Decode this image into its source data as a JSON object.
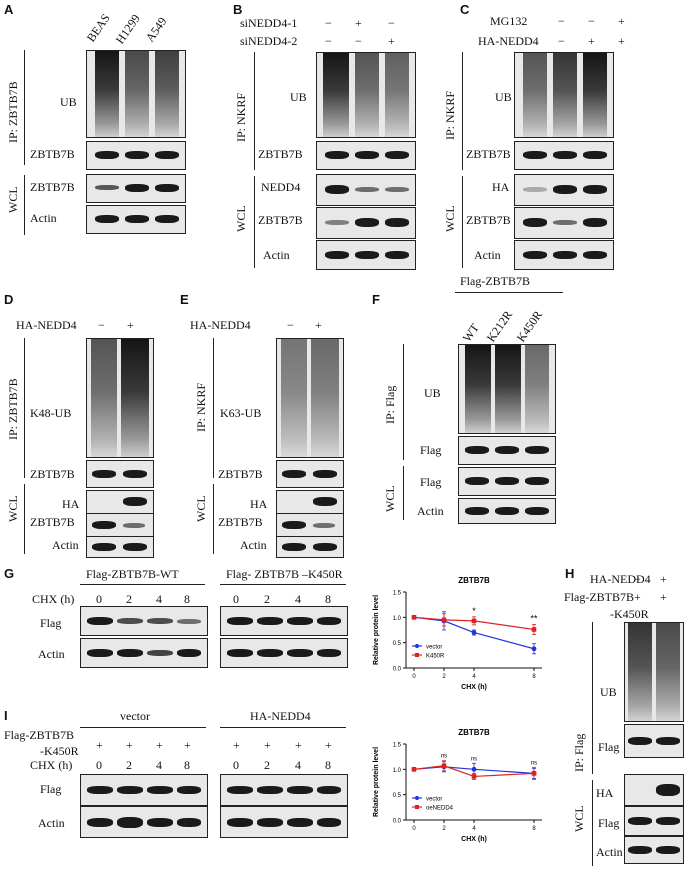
{
  "panels": {
    "A": {
      "label": "A",
      "lanes": [
        "BEAS",
        "H1299",
        "A549"
      ],
      "ip_label": "IP: ZBTB7B",
      "wcl_label": "WCL",
      "rows": [
        "UB",
        "ZBTB7B",
        "ZBTB7B",
        "Actin"
      ]
    },
    "B": {
      "label": "B",
      "conditions": [
        {
          "name": "siNEDD4-1",
          "signs": [
            "−",
            "+",
            "−"
          ]
        },
        {
          "name": "siNEDD4-2",
          "signs": [
            "−",
            "−",
            "+"
          ]
        }
      ],
      "ip_label": "IP: NKRF",
      "wcl_label": "WCL",
      "rows": [
        "UB",
        "ZBTB7B",
        "NEDD4",
        "ZBTB7B",
        "Actin"
      ]
    },
    "C": {
      "label": "C",
      "conditions": [
        {
          "name": "MG132",
          "signs": [
            "−",
            "−",
            "+"
          ]
        },
        {
          "name": "HA-NEDD4",
          "signs": [
            "−",
            "+",
            "+"
          ]
        }
      ],
      "ip_label": "IP: NKRF",
      "wcl_label": "WCL",
      "rows": [
        "UB",
        "ZBTB7B",
        "HA",
        "ZBTB7B",
        "Actin"
      ]
    },
    "D": {
      "label": "D",
      "conditions": [
        {
          "name": "HA-NEDD4",
          "signs": [
            "−",
            "+"
          ]
        }
      ],
      "ip_label": "IP: ZBTB7B",
      "wcl_label": "WCL",
      "rows": [
        "K48-UB",
        "ZBTB7B",
        "HA",
        "ZBTB7B",
        "Actin"
      ]
    },
    "E": {
      "label": "E",
      "conditions": [
        {
          "name": "HA-NEDD4",
          "signs": [
            "−",
            "+"
          ]
        }
      ],
      "ip_label": "IP: NKRF",
      "wcl_label": "WCL",
      "rows": [
        "K63-UB",
        "ZBTB7B",
        "HA",
        "ZBTB7B",
        "Actin"
      ]
    },
    "F": {
      "label": "F",
      "header": "Flag-ZBTB7B",
      "lanes": [
        "WT",
        "K212R",
        "K450R"
      ],
      "ip_label": "IP: Flag",
      "wcl_label": "WCL",
      "rows": [
        "UB",
        "Flag",
        "Flag",
        "Actin"
      ]
    },
    "G": {
      "label": "G",
      "blot_titles": [
        "Flag-ZBTB7B-WT",
        "Flag- ZBTB7B –K450R"
      ],
      "chx_label": "CHX (h)",
      "times": [
        "0",
        "2",
        "4",
        "8"
      ],
      "rows": [
        "Flag",
        "Actin"
      ]
    },
    "H": {
      "label": "H",
      "conditions": [
        {
          "name": "HA-NEDD4",
          "signs": [
            "−",
            "+"
          ]
        },
        {
          "name": "Flag-ZBTB7B",
          "signs": [
            "+",
            "+"
          ]
        }
      ],
      "subtitle": "-K450R",
      "ip_label": "IP: Flag",
      "wcl_label": "WCL",
      "rows": [
        "UB",
        "Flag",
        "HA",
        "Flag",
        "Actin"
      ]
    },
    "I": {
      "label": "I",
      "construct_line1": "Flag-ZBTB7B",
      "construct_line2": "-K450R",
      "blot_titles": [
        "vector",
        "HA-NEDD4"
      ],
      "plus": "+",
      "chx_label": "CHX (h)",
      "times": [
        "0",
        "2",
        "4",
        "8"
      ],
      "rows": [
        "Flag",
        "Actin"
      ]
    }
  },
  "chart_data": [
    {
      "type": "line",
      "title": "ZBTB7B",
      "xlabel": "CHX (h)",
      "ylabel": "Relative protein level",
      "x": [
        0,
        2,
        4,
        8
      ],
      "xticks": [
        "0",
        "2",
        "4",
        "8"
      ],
      "yticks": [
        "0.0",
        "0.5",
        "1.0",
        "1.5"
      ],
      "ylim": [
        0,
        1.5
      ],
      "series": [
        {
          "name": "vector",
          "color": "#2233dd",
          "marker": "circle",
          "values": [
            1.0,
            0.93,
            0.7,
            0.38
          ],
          "errors": [
            0.02,
            0.18,
            0.05,
            0.1
          ]
        },
        {
          "name": "K450R",
          "color": "#dd2222",
          "marker": "square",
          "values": [
            1.0,
            0.95,
            0.93,
            0.76
          ],
          "errors": [
            0.02,
            0.12,
            0.08,
            0.1
          ]
        }
      ],
      "annotations": [
        {
          "x": 4,
          "text": "*"
        },
        {
          "x": 8,
          "text": "**"
        }
      ],
      "legend": "bottom-left"
    },
    {
      "type": "line",
      "title": "ZBTB7B",
      "xlabel": "CHX (h)",
      "ylabel": "Relative protein level",
      "x": [
        0,
        2,
        4,
        8
      ],
      "xticks": [
        "0",
        "2",
        "4",
        "8"
      ],
      "yticks": [
        "0.0",
        "0.5",
        "1.0",
        "1.5"
      ],
      "ylim": [
        0,
        1.5
      ],
      "series": [
        {
          "name": "vector",
          "color": "#2233dd",
          "marker": "circle",
          "values": [
            1.0,
            1.05,
            1.0,
            0.92
          ],
          "errors": [
            0.02,
            0.1,
            0.12,
            0.1
          ]
        },
        {
          "name": "oeNEDD4",
          "color": "#dd2222",
          "marker": "square",
          "values": [
            1.0,
            1.07,
            0.86,
            0.92
          ],
          "errors": [
            0.02,
            0.1,
            0.06,
            0.12
          ]
        }
      ],
      "annotations": [
        {
          "x": 2,
          "text": "ns"
        },
        {
          "x": 4,
          "text": "ns"
        },
        {
          "x": 8,
          "text": "ns"
        }
      ],
      "legend": "bottom-left"
    }
  ]
}
